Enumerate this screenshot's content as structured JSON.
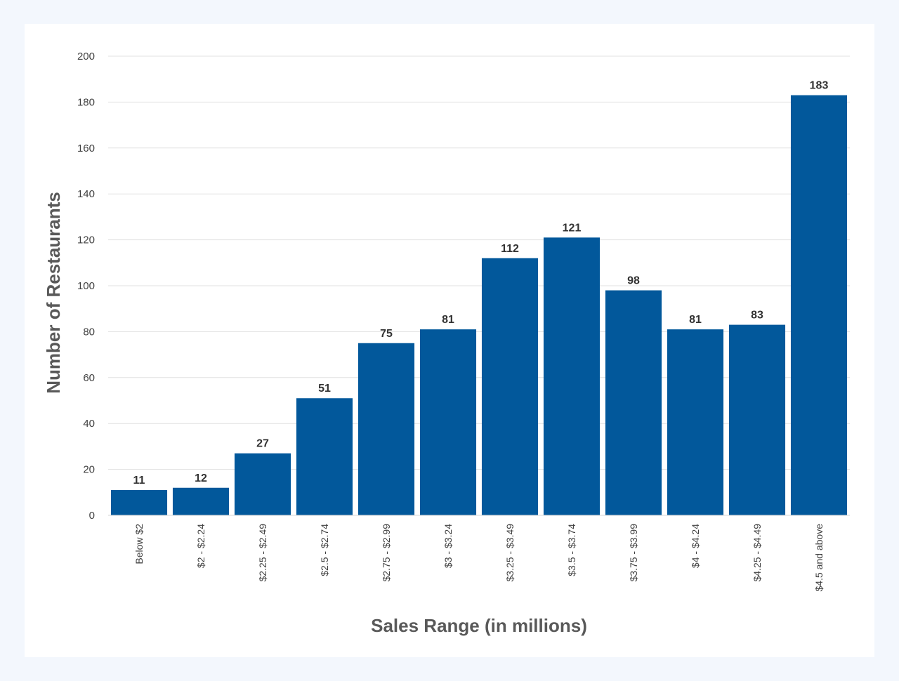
{
  "chart_data": {
    "type": "bar",
    "title": "",
    "xlabel": "Sales Range (in millions)",
    "ylabel": "Number of Restaurants",
    "ylim": [
      0,
      200
    ],
    "yticks": [
      0,
      20,
      40,
      60,
      80,
      100,
      120,
      140,
      160,
      180,
      200
    ],
    "grid": true,
    "legend": "none",
    "bar_color": "#02589b",
    "categories": [
      "Below $2",
      "$2 - $2.24",
      "$2.25 - $2.49",
      "$2.5 - $2.74",
      "$2.75 - $2.99",
      "$3 - $3.24",
      "$3.25 - $3.49",
      "$3.5 - $3.74",
      "$3.75 - $3.99",
      "$4 - $4.24",
      "$4.25 - $4.49",
      "$4.5 and above"
    ],
    "values": [
      11,
      12,
      27,
      51,
      75,
      81,
      112,
      121,
      98,
      81,
      83,
      183
    ]
  }
}
